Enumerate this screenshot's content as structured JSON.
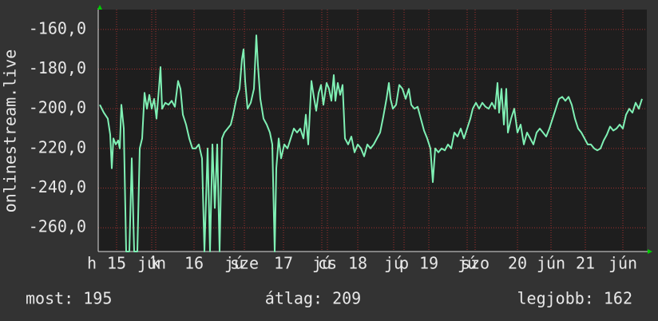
{
  "chart_data": {
    "type": "line",
    "y_label": "onlinestream.live",
    "ylim": [
      -272,
      -150
    ],
    "yticks": [
      {
        "value": -160,
        "label": "-160,0"
      },
      {
        "value": -180,
        "label": "-180,0"
      },
      {
        "value": -200,
        "label": "-200,0"
      },
      {
        "value": -220,
        "label": "-220,0"
      },
      {
        "value": -240,
        "label": "-240,0"
      },
      {
        "value": -260,
        "label": "-260,0"
      }
    ],
    "xlim": [
      0,
      687
    ],
    "xticks": [
      {
        "value": -8,
        "label": "h"
      },
      {
        "value": 23,
        "label": "15"
      },
      {
        "value": 67,
        "label": "jún"
      },
      {
        "value": 72,
        "label": "k"
      },
      {
        "value": 120,
        "label": "16"
      },
      {
        "value": 170,
        "label": "jú"
      },
      {
        "value": 183,
        "label": "sze"
      },
      {
        "value": 232,
        "label": "17"
      },
      {
        "value": 280,
        "label": "jú"
      },
      {
        "value": 287,
        "label": "cs"
      },
      {
        "value": 325,
        "label": "18"
      },
      {
        "value": 370,
        "label": "jú"
      },
      {
        "value": 383,
        "label": "p"
      },
      {
        "value": 414,
        "label": "19"
      },
      {
        "value": 462,
        "label": "jú"
      },
      {
        "value": 472,
        "label": "szo"
      },
      {
        "value": 525,
        "label": "20"
      },
      {
        "value": 567,
        "label": "jún"
      },
      {
        "value": 610,
        "label": "21"
      },
      {
        "value": 657,
        "label": "jún"
      }
    ],
    "grid": true,
    "series": [
      {
        "name": "onlinestream.live",
        "color": "#7ff0b4",
        "x": [
          2,
          7,
          12,
          15,
          17,
          19,
          22,
          25,
          27,
          29,
          32,
          35,
          39,
          42,
          45,
          49,
          52,
          55,
          58,
          61,
          64,
          67,
          70,
          73,
          76,
          78,
          80,
          84,
          88,
          92,
          96,
          100,
          103,
          106,
          110,
          114,
          118,
          122,
          126,
          130,
          133,
          137,
          140,
          143,
          146,
          149,
          152,
          155,
          158,
          162,
          166,
          169,
          173,
          177,
          180,
          182,
          184,
          187,
          191,
          195,
          198,
          200,
          203,
          207,
          211,
          215,
          218,
          221,
          223,
          226,
          229,
          233,
          237,
          241,
          245,
          249,
          253,
          257,
          260,
          263,
          267,
          270,
          273,
          276,
          279,
          282,
          286,
          289,
          292,
          295,
          297,
          300,
          303,
          306,
          309,
          313,
          317,
          321,
          325,
          329,
          333,
          337,
          341,
          345,
          349,
          353,
          357,
          361,
          364,
          366,
          369,
          373,
          377,
          381,
          385,
          389,
          392,
          396,
          400,
          404,
          408,
          412,
          416,
          419,
          422,
          426,
          430,
          434,
          438,
          442,
          446,
          450,
          454,
          458,
          462,
          466,
          469,
          473,
          477,
          481,
          485,
          489,
          493,
          497,
          500,
          502,
          505,
          508,
          511,
          513,
          517,
          521,
          525,
          529,
          533,
          537,
          541,
          545,
          549,
          553,
          557,
          561,
          565,
          569,
          573,
          577,
          581,
          585,
          589,
          593,
          597,
          601,
          605,
          609,
          613,
          617,
          621,
          625,
          629,
          633,
          637,
          641,
          645,
          649,
          653,
          657,
          661,
          665,
          669,
          673,
          677,
          681
        ],
        "values": [
          -198,
          -202,
          -205,
          -213,
          -230,
          -215,
          -218,
          -216,
          -220,
          -198,
          -210,
          -272,
          -272,
          -225,
          -272,
          -272,
          -220,
          -215,
          -192,
          -200,
          -193,
          -200,
          -195,
          -205,
          -190,
          -179,
          -200,
          -197,
          -198,
          -196,
          -199,
          -186,
          -190,
          -203,
          -208,
          -215,
          -220,
          -220,
          -218,
          -225,
          -272,
          -220,
          -272,
          -218,
          -250,
          -218,
          -272,
          -215,
          -212,
          -210,
          -208,
          -203,
          -195,
          -190,
          -175,
          -170,
          -186,
          -200,
          -197,
          -190,
          -163,
          -178,
          -195,
          -205,
          -208,
          -212,
          -218,
          -272,
          -230,
          -215,
          -225,
          -218,
          -220,
          -215,
          -210,
          -212,
          -210,
          -215,
          -203,
          -218,
          -186,
          -194,
          -201,
          -192,
          -188,
          -198,
          -187,
          -190,
          -196,
          -183,
          -196,
          -187,
          -193,
          -188,
          -215,
          -218,
          -214,
          -222,
          -218,
          -220,
          -224,
          -218,
          -220,
          -218,
          -215,
          -212,
          -204,
          -195,
          -187,
          -195,
          -200,
          -198,
          -188,
          -190,
          -195,
          -190,
          -198,
          -200,
          -199,
          -205,
          -211,
          -215,
          -220,
          -237,
          -220,
          -222,
          -220,
          -221,
          -218,
          -220,
          -212,
          -214,
          -210,
          -215,
          -210,
          -205,
          -200,
          -197,
          -200,
          -197,
          -199,
          -200,
          -197,
          -200,
          -187,
          -202,
          -190,
          -208,
          -190,
          -212,
          -205,
          -200,
          -212,
          -208,
          -218,
          -212,
          -215,
          -218,
          -212,
          -210,
          -212,
          -214,
          -210,
          -205,
          -200,
          -195,
          -194,
          -196,
          -194,
          -198,
          -205,
          -210,
          -212,
          -215,
          -218,
          -218,
          -220,
          -221,
          -220,
          -216,
          -213,
          -209,
          -211,
          -210,
          -208,
          -210,
          -203,
          -200,
          -202,
          -197,
          -200,
          -195
        ]
      }
    ],
    "stats": [
      "most: 195",
      "átlag: 209",
      "legjobb: 162"
    ]
  }
}
